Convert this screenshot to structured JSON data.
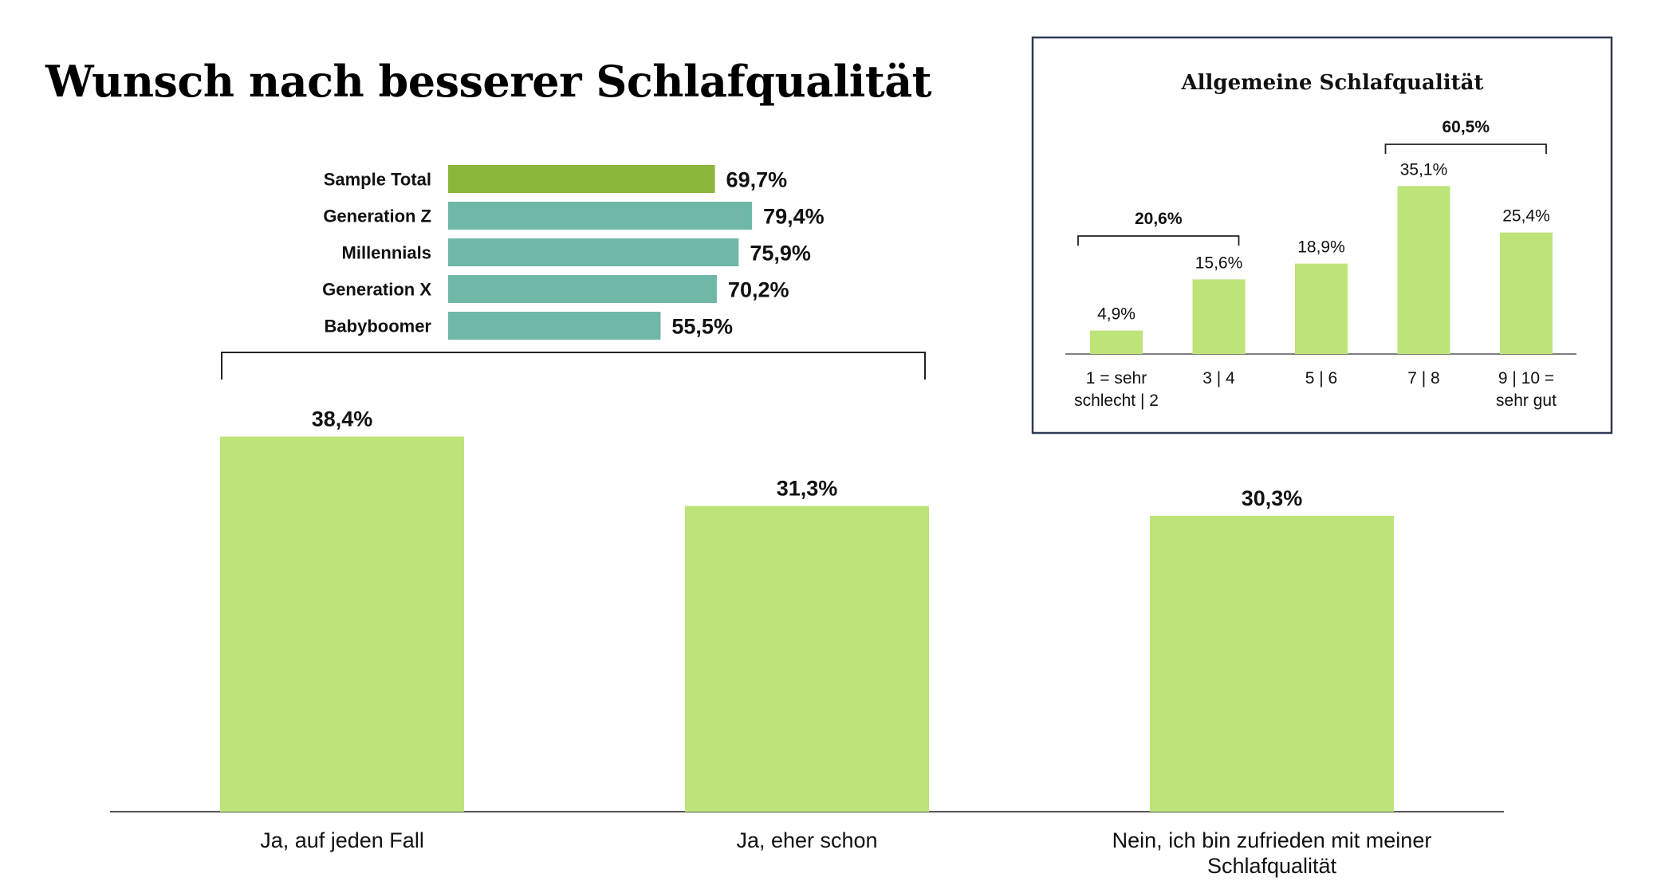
{
  "title": "Wunsch nach besserer Schlafqualität",
  "colors": {
    "main_bar": "#bde478",
    "total_bar": "#8ab739",
    "group_bar": "#6fb8a8",
    "inset_border": "#2e3a52",
    "axis": "#555555"
  },
  "chart_data": [
    {
      "type": "bar",
      "categories": [
        "Ja, auf jeden Fall",
        "Ja, eher schon",
        "Nein, ich bin zufrieden mit meiner Schlafqualität"
      ],
      "values": [
        38.4,
        31.3,
        30.3
      ],
      "value_labels": [
        "38,4%",
        "31,3%",
        "30,3%"
      ],
      "ylim": [
        0,
        40
      ],
      "grid": false
    },
    {
      "type": "bar",
      "orientation": "horizontal",
      "categories": [
        "Sample Total",
        "Generation Z",
        "Millennials",
        "Generation X",
        "Babyboomer"
      ],
      "values": [
        69.7,
        79.4,
        75.9,
        70.2,
        55.5
      ],
      "value_labels": [
        "69,7%",
        "79,4%",
        "75,9%",
        "70,2%",
        "55,5%"
      ],
      "xlim": [
        0,
        100
      ],
      "grid": false
    },
    {
      "type": "bar",
      "title": "Allgemeine Schlafqualität",
      "categories": [
        "1 = sehr schlecht | 2",
        "3 | 4",
        "5 | 6",
        "7 | 8",
        "9 | 10 = sehr gut"
      ],
      "category_lines": [
        [
          "1 = sehr",
          "schlecht | 2"
        ],
        [
          "3 | 4"
        ],
        [
          "5 | 6"
        ],
        [
          "7 | 8"
        ],
        [
          "9 | 10 =",
          "sehr gut"
        ]
      ],
      "values": [
        4.9,
        15.6,
        18.9,
        35.1,
        25.4
      ],
      "value_labels": [
        "4,9%",
        "15,6%",
        "18,9%",
        "35,1%",
        "25,4%"
      ],
      "ylim": [
        0,
        40
      ],
      "grid": false,
      "brackets": [
        {
          "label": "20,6%",
          "from": 0,
          "to": 1
        },
        {
          "label": "60,5%",
          "from": 3,
          "to": 4
        }
      ]
    }
  ]
}
